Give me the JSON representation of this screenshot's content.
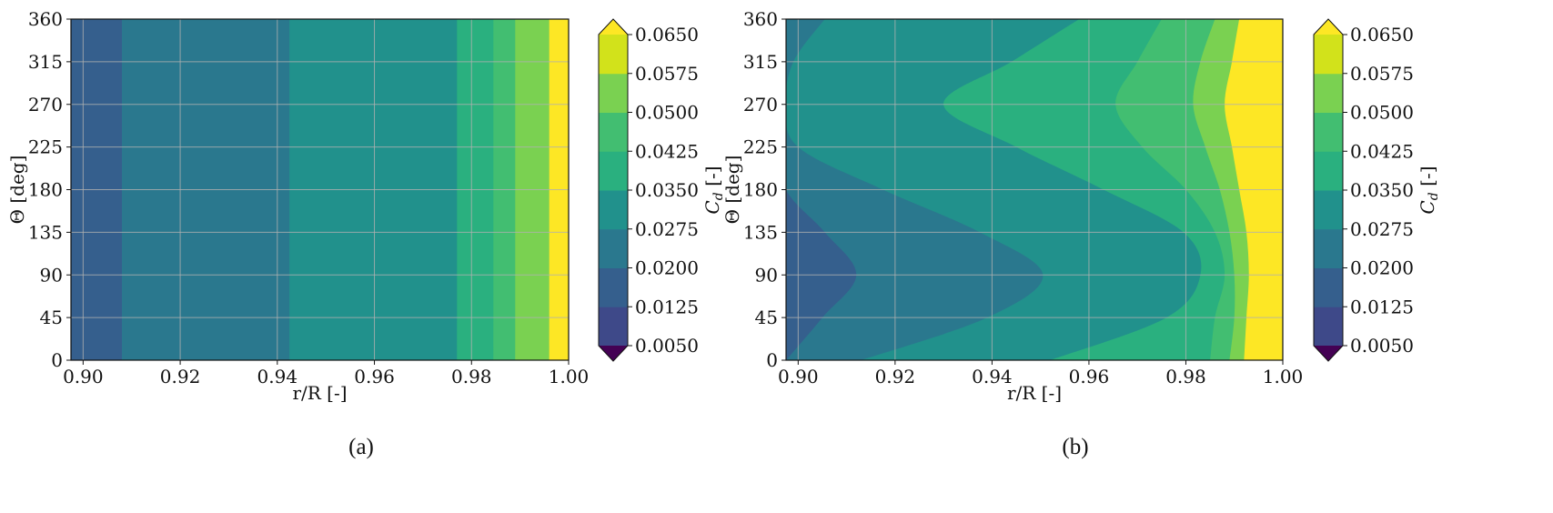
{
  "chart_data": [
    {
      "type": "heatmap",
      "subtype": "filled-contour",
      "panel_label": "(a)",
      "xlabel": "r/R [-]",
      "ylabel": "Θ [deg]",
      "colorbar_label": "C_d [-]",
      "xlim": [
        0.8975,
        1.0
      ],
      "ylim": [
        0,
        360
      ],
      "x_ticks": [
        "0.90",
        "0.92",
        "0.94",
        "0.96",
        "0.98",
        "1.00"
      ],
      "y_ticks": [
        "0",
        "45",
        "90",
        "135",
        "180",
        "225",
        "270",
        "315",
        "360"
      ],
      "colorbar_ticks": [
        "0.0050",
        "0.0125",
        "0.0200",
        "0.0275",
        "0.0350",
        "0.0425",
        "0.0500",
        "0.0575",
        "0.0650"
      ],
      "colorbar_extend": "both",
      "grid": true,
      "theta": [
        0,
        45,
        90,
        135,
        180,
        225,
        270,
        315,
        360
      ],
      "contour_boundaries_r": [
        {
          "level": 0.0275,
          "r": [
            0.908,
            0.908,
            0.908,
            0.908,
            0.908,
            0.908,
            0.908,
            0.908,
            0.908
          ]
        },
        {
          "level": 0.035,
          "r": [
            0.9425,
            0.9425,
            0.9425,
            0.9425,
            0.9425,
            0.9425,
            0.9425,
            0.9425,
            0.9425
          ]
        },
        {
          "level": 0.0425,
          "r": [
            0.977,
            0.977,
            0.977,
            0.977,
            0.977,
            0.977,
            0.977,
            0.977,
            0.977
          ]
        },
        {
          "level": 0.05,
          "r": [
            0.9845,
            0.9845,
            0.9845,
            0.9845,
            0.9845,
            0.9845,
            0.9845,
            0.9845,
            0.9845
          ]
        },
        {
          "level": 0.0575,
          "r": [
            0.989,
            0.989,
            0.989,
            0.989,
            0.989,
            0.989,
            0.989,
            0.989,
            0.989
          ]
        },
        {
          "level": 0.065,
          "r": [
            0.996,
            0.996,
            0.996,
            0.996,
            0.996,
            0.996,
            0.996,
            0.996,
            0.996
          ]
        }
      ]
    },
    {
      "type": "heatmap",
      "subtype": "filled-contour",
      "panel_label": "(b)",
      "xlabel": "r/R [-]",
      "ylabel": "Θ [deg]",
      "colorbar_label": "C_d [-]",
      "xlim": [
        0.8975,
        1.0
      ],
      "ylim": [
        0,
        360
      ],
      "x_ticks": [
        "0.90",
        "0.92",
        "0.94",
        "0.96",
        "0.98",
        "1.00"
      ],
      "y_ticks": [
        "0",
        "45",
        "90",
        "135",
        "180",
        "225",
        "270",
        "315",
        "360"
      ],
      "colorbar_ticks": [
        "0.0050",
        "0.0125",
        "0.0200",
        "0.0275",
        "0.0350",
        "0.0425",
        "0.0500",
        "0.0575",
        "0.0650"
      ],
      "colorbar_extend": "both",
      "grid": true,
      "theta": [
        0,
        45,
        90,
        135,
        180,
        225,
        270,
        315,
        360
      ],
      "contour_boundaries_r": [
        {
          "level": 0.0275,
          "r": [
            0.8975,
            0.905,
            0.912,
            0.9055,
            0.8975,
            0.8975,
            0.8975,
            0.8975,
            0.8975
          ]
        },
        {
          "level": 0.035,
          "r": [
            0.913,
            0.939,
            0.9505,
            0.9375,
            0.9175,
            0.9,
            0.8975,
            0.899,
            0.9055
          ]
        },
        {
          "level": 0.0425,
          "r": [
            0.952,
            0.976,
            0.983,
            0.9795,
            0.963,
            0.945,
            0.93,
            0.944,
            0.958
          ]
        },
        {
          "level": 0.05,
          "r": [
            0.985,
            0.986,
            0.988,
            0.986,
            0.98,
            0.971,
            0.9655,
            0.97,
            0.975
          ]
        },
        {
          "level": 0.0575,
          "r": [
            0.989,
            0.99,
            0.99,
            0.989,
            0.987,
            0.984,
            0.9815,
            0.983,
            0.986
          ]
        },
        {
          "level": 0.065,
          "r": [
            0.992,
            0.9925,
            0.993,
            0.9925,
            0.991,
            0.9895,
            0.988,
            0.9895,
            0.991
          ]
        }
      ]
    }
  ],
  "colors": {
    "band_0.0050": "#481b6d",
    "band_0.0125": "#3e4989",
    "band_0.0200": "#355f8d",
    "band_0.0275": "#2a788e",
    "band_0.0350": "#21918c",
    "band_0.0425": "#2ab07f",
    "band_0.0500": "#42be71",
    "band_0.0575": "#7ad151",
    "band_0.0650": "#d2e21b",
    "over": "#fde725",
    "under": "#440154",
    "grid": "#b0b0b0"
  }
}
